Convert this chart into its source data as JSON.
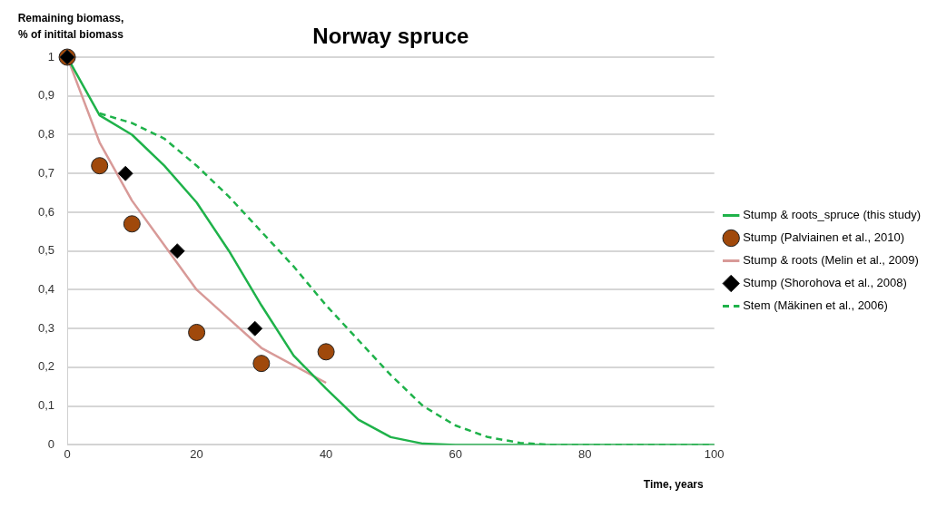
{
  "chart_data": {
    "type": "line",
    "title": "Norway spruce",
    "ylabel": "Remaining biomass,\n% of initital biomass",
    "xlabel": "Time, years",
    "xlim": [
      0,
      100
    ],
    "xticks": [
      0,
      20,
      40,
      60,
      80,
      100
    ],
    "ylim": [
      0,
      1
    ],
    "yticks": [
      0,
      {
        "value": 0.1,
        "label": "0,1"
      },
      {
        "value": 0.2,
        "label": "0,2"
      },
      {
        "value": 0.3,
        "label": "0,3"
      },
      {
        "value": 0.4,
        "label": "0,4"
      },
      {
        "value": 0.5,
        "label": "0,5"
      },
      {
        "value": 0.6,
        "label": "0,6"
      },
      {
        "value": 0.7,
        "label": "0,7"
      },
      {
        "value": 0.8,
        "label": "0,8"
      },
      {
        "value": 0.9,
        "label": "0,9"
      },
      1
    ],
    "grid": "y",
    "legend": "right",
    "series": [
      {
        "name": "Stump & roots_spruce (this study)",
        "type": "line",
        "color": "#1fb24a",
        "line_style": "solid",
        "marker": "none",
        "x": [
          0,
          5,
          10,
          15,
          20,
          25,
          30,
          35,
          40,
          45,
          50,
          55,
          60,
          70,
          80,
          90,
          100
        ],
        "values": [
          1,
          0.85,
          0.8,
          0.72,
          0.625,
          0.5,
          0.36,
          0.23,
          0.145,
          0.065,
          0.02,
          0.003,
          0,
          0,
          0,
          0,
          0
        ]
      },
      {
        "name": "Stump (Palviainen et al., 2010)",
        "type": "scatter",
        "color": "#a0490b",
        "marker": "circle",
        "x": [
          0,
          5,
          10,
          20,
          30,
          40
        ],
        "values": [
          1,
          0.72,
          0.57,
          0.29,
          0.21,
          0.24
        ]
      },
      {
        "name": "Stump & roots (Melin et al., 2009)",
        "type": "line",
        "color": "#d89a98",
        "line_style": "solid",
        "marker": "none",
        "x": [
          0,
          5,
          10,
          20,
          30,
          40
        ],
        "values": [
          1,
          0.78,
          0.63,
          0.4,
          0.25,
          0.16
        ]
      },
      {
        "name": "Stump (Shorohova et al., 2008)",
        "type": "scatter",
        "color": "#000000",
        "marker": "diamond",
        "x": [
          0,
          9,
          17,
          29
        ],
        "values": [
          1,
          0.7,
          0.5,
          0.3
        ]
      },
      {
        "name": "Stem (Mäkinen et al., 2006)",
        "type": "line",
        "color": "#1fb24a",
        "line_style": "dashed",
        "marker": "none",
        "x": [
          5,
          10,
          15,
          20,
          25,
          30,
          35,
          40,
          45,
          50,
          55,
          60,
          65,
          70,
          75,
          80,
          90,
          100
        ],
        "values": [
          0.855,
          0.83,
          0.79,
          0.72,
          0.64,
          0.55,
          0.46,
          0.36,
          0.27,
          0.18,
          0.1,
          0.05,
          0.02,
          0.005,
          0,
          0,
          0,
          0
        ]
      }
    ]
  }
}
